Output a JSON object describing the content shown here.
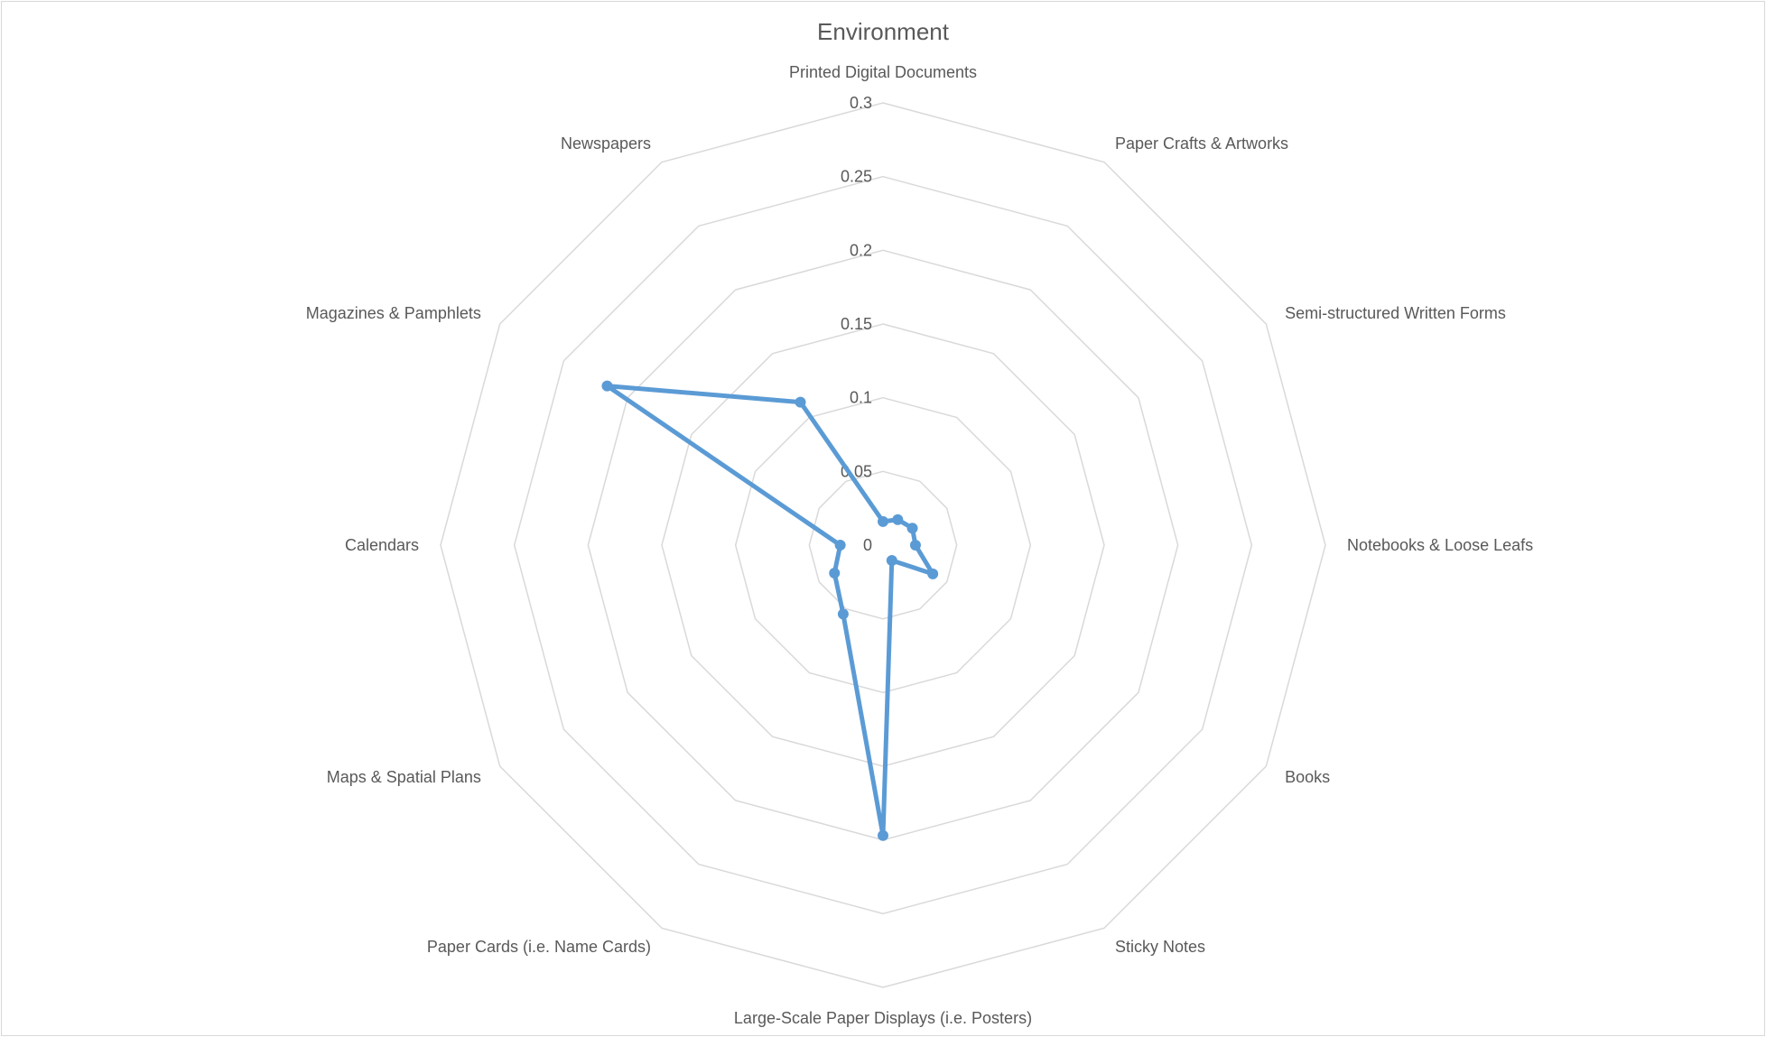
{
  "chart_data": {
    "type": "radar",
    "title": "Environment",
    "categories": [
      "Printed Digital Documents",
      "Paper Crafts & Artworks",
      "Semi-structured Written Forms",
      "Notebooks & Loose Leafs",
      "Books",
      "Sticky Notes",
      "Large-Scale Paper Displays (i.e. Posters)",
      "Paper Cards (i.e. Name Cards)",
      "Maps & Spatial Plans",
      "Calendars",
      "Magazines & Pamphlets",
      "Newspapers"
    ],
    "series": [
      {
        "values": [
          0.016,
          0.02,
          0.023,
          0.022,
          0.039,
          0.012,
          0.197,
          0.054,
          0.038,
          0.029,
          0.216,
          0.112
        ],
        "color": "#5b9bd5"
      }
    ],
    "rlim": [
      0,
      0.3
    ],
    "ticks": [
      "0",
      "0.05",
      "0.1",
      "0.15",
      "0.2",
      "0.25",
      "0.3"
    ],
    "tick_values": [
      0,
      0.05,
      0.1,
      0.15,
      0.2,
      0.25,
      0.3
    ],
    "grid": true,
    "grid_color": "#d9d9d9",
    "legend": "none"
  }
}
